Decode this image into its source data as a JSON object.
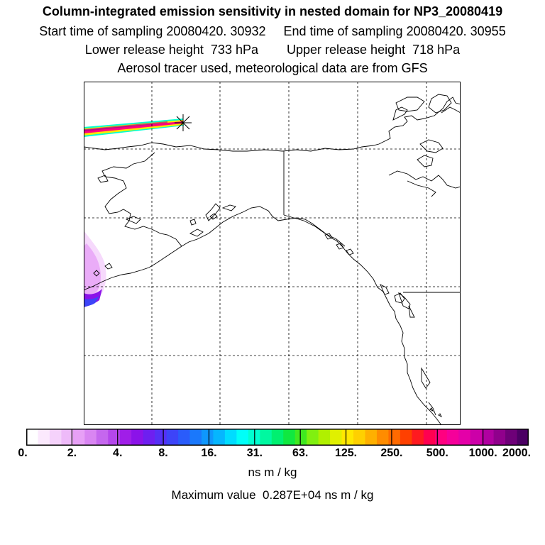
{
  "header": {
    "title": "Column-integrated emission sensitivity in nested domain for NP3_20080419",
    "line1": "Start time of sampling 20080420. 30932     End time of sampling 20080420. 30955",
    "line2": "Lower release height  733 hPa        Upper release height  718 hPa",
    "line3": "Aerosol tracer used, meteorological data are from GFS"
  },
  "colorbar": {
    "tick_labels": [
      "0.",
      "2.",
      "4.",
      "8.",
      "16.",
      "31.",
      "63.",
      "125.",
      "250.",
      "500.",
      "1000.",
      "2000."
    ],
    "units": "ns m / kg",
    "colors": [
      "#ffffff",
      "#fbe9fd",
      "#f5d2fb",
      "#eebaf9",
      "#e7a0f6",
      "#d985f2",
      "#c567ee",
      "#b447eb",
      "#a01ee8",
      "#8b13e9",
      "#6e1ff0",
      "#5530f5",
      "#3d44f8",
      "#2a5cfb",
      "#1a78fc",
      "#0f97fd",
      "#06b6fe",
      "#00dcff",
      "#00fff8",
      "#00ffd0",
      "#00f8a0",
      "#00f070",
      "#10e840",
      "#40e820",
      "#80f010",
      "#b0f000",
      "#e0f000",
      "#ffe800",
      "#ffd000",
      "#ffb000",
      "#ff8c00",
      "#ff6a00",
      "#ff4000",
      "#ff1a20",
      "#ff0050",
      "#ff0080",
      "#f5009a",
      "#e400a8",
      "#cc00a8",
      "#b000a0",
      "#90008c",
      "#6e0078",
      "#4c0064"
    ]
  },
  "max_value": "Maximum value  0.287E+04 ns m / kg",
  "map": {
    "release_marker": "release-site",
    "plume_colors": [
      "#ff0080",
      "#ffe800",
      "#00ffd0",
      "#8b13e9"
    ]
  }
}
